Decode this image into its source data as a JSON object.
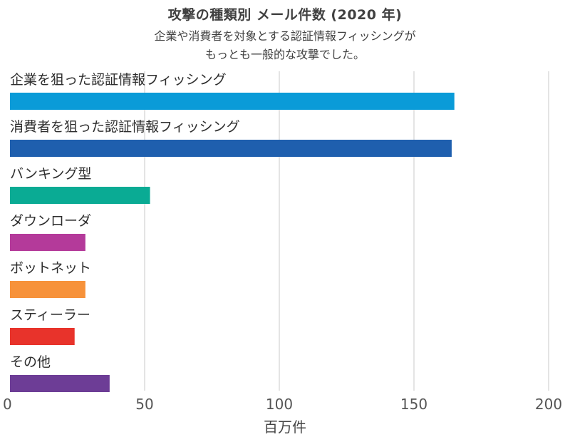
{
  "chart_data": {
    "type": "bar",
    "orientation": "horizontal",
    "title": "攻撃の種類別 メール件数 (2020 年)",
    "subtitle_lines": [
      "企業や消費者を対象とする認証情報フィッシングが",
      "もっとも一般的な攻撃でした。"
    ],
    "categories": [
      "企業を狙った認証情報フィッシング",
      "消費者を狙った認証情報フィッシング",
      "バンキング型",
      "ダウンローダ",
      "ボットネット",
      "スティーラー",
      "その他"
    ],
    "values": [
      165,
      164,
      52,
      28,
      28,
      24,
      37
    ],
    "colors": [
      "#0a9bd8",
      "#1f5fae",
      "#0aab94",
      "#b43a9a",
      "#f7923a",
      "#e8332b",
      "#6d3d96"
    ],
    "xlabel": "百万件",
    "ylabel": "",
    "xlim": [
      0,
      200
    ],
    "xticks": [
      0,
      50,
      100,
      150,
      200
    ],
    "xtick_labels": [
      "0",
      "50",
      "100",
      "150",
      "200"
    ],
    "grid": true,
    "legend": "none"
  }
}
